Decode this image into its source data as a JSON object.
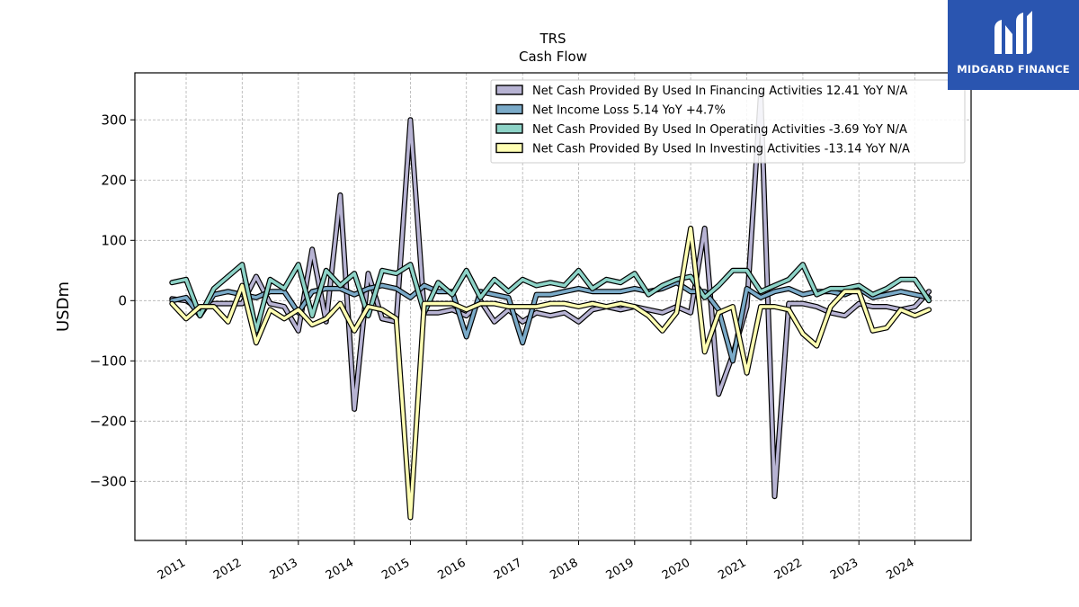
{
  "brand": {
    "name": "MIDGARD FINANCE",
    "icon": "midgard-m-logo",
    "background": "#2a55b0"
  },
  "chart_data": {
    "type": "line",
    "title": "TRS",
    "subtitle": "Cash Flow",
    "ylabel": "USDm",
    "xlabel": "",
    "xlim": [
      "2010-02-01",
      "2025-01-01"
    ],
    "ylim": [
      -398,
      378
    ],
    "yticks": [
      -300,
      -200,
      -100,
      0,
      100,
      200,
      300
    ],
    "ytick_labels": [
      "−300",
      "−200",
      "−100",
      "0",
      "100",
      "200",
      "300"
    ],
    "xticks": [
      "2011-01-01",
      "2012-01-01",
      "2013-01-01",
      "2014-01-01",
      "2015-01-01",
      "2016-01-01",
      "2017-01-01",
      "2018-01-01",
      "2019-01-01",
      "2020-01-01",
      "2021-01-01",
      "2022-01-01",
      "2023-01-01",
      "2024-01-01"
    ],
    "xtick_labels": [
      "2011",
      "2012",
      "2013",
      "2014",
      "2015",
      "2016",
      "2017",
      "2018",
      "2019",
      "2020",
      "2021",
      "2022",
      "2023",
      "2024"
    ],
    "grid": true,
    "legend_position": "top-right",
    "x": [
      "2010-10-01",
      "2011-01-01",
      "2011-04-01",
      "2011-07-01",
      "2011-10-01",
      "2012-01-01",
      "2012-04-01",
      "2012-07-01",
      "2012-10-01",
      "2013-01-01",
      "2013-04-01",
      "2013-07-01",
      "2013-10-01",
      "2014-01-01",
      "2014-04-01",
      "2014-07-01",
      "2014-10-01",
      "2015-01-01",
      "2015-04-01",
      "2015-07-01",
      "2015-10-01",
      "2016-01-01",
      "2016-04-01",
      "2016-07-01",
      "2016-10-01",
      "2017-01-01",
      "2017-04-01",
      "2017-07-01",
      "2017-10-01",
      "2018-01-01",
      "2018-04-01",
      "2018-07-01",
      "2018-10-01",
      "2019-01-01",
      "2019-04-01",
      "2019-07-01",
      "2019-10-01",
      "2020-01-01",
      "2020-04-01",
      "2020-07-01",
      "2020-10-01",
      "2021-01-01",
      "2021-04-01",
      "2021-07-01",
      "2021-10-01",
      "2022-01-01",
      "2022-04-01",
      "2022-07-01",
      "2022-10-01",
      "2023-01-01",
      "2023-04-01",
      "2023-07-01",
      "2023-10-01",
      "2024-01-01",
      "2024-04-01"
    ],
    "series": [
      {
        "name": "Net Cash Provided By Used In Financing Activities  12.41 YoY N/A",
        "color": "#b7b3d3",
        "values": [
          3,
          0,
          -15,
          -5,
          -5,
          -5,
          40,
          -5,
          -10,
          -50,
          85,
          -35,
          175,
          -180,
          45,
          -30,
          -35,
          300,
          -20,
          -20,
          -15,
          -25,
          0,
          -35,
          -15,
          -35,
          -20,
          -25,
          -20,
          -35,
          -15,
          -10,
          -15,
          -10,
          -15,
          -20,
          -10,
          -20,
          120,
          -155,
          -90,
          -10,
          345,
          -325,
          -5,
          -5,
          -10,
          -20,
          -25,
          -5,
          -10,
          -10,
          -15,
          -10,
          15
        ]
      },
      {
        "name": "Net Income Loss  5.14 YoY +4.7%",
        "color": "#7aaac8",
        "values": [
          0,
          5,
          -25,
          10,
          15,
          10,
          5,
          15,
          15,
          -20,
          15,
          20,
          20,
          10,
          20,
          25,
          20,
          5,
          25,
          15,
          15,
          -60,
          15,
          10,
          5,
          -70,
          10,
          10,
          15,
          20,
          15,
          15,
          15,
          20,
          15,
          20,
          30,
          15,
          15,
          -15,
          -100,
          20,
          5,
          15,
          20,
          10,
          15,
          15,
          10,
          20,
          5,
          10,
          15,
          10,
          5
        ]
      },
      {
        "name": "Net Cash Provided By Used In Operating Activities  -3.69 YoY N/A",
        "color": "#8dd3c7",
        "values": [
          30,
          35,
          -25,
          20,
          40,
          60,
          -50,
          35,
          20,
          60,
          -25,
          50,
          25,
          45,
          -25,
          50,
          45,
          60,
          -20,
          30,
          10,
          50,
          5,
          35,
          15,
          35,
          25,
          30,
          25,
          50,
          20,
          35,
          30,
          45,
          10,
          25,
          35,
          40,
          5,
          25,
          50,
          50,
          15,
          25,
          35,
          60,
          10,
          20,
          20,
          25,
          10,
          20,
          35,
          35,
          0
        ]
      },
      {
        "name": "Net Cash Provided By Used In Investing Activities  -13.14 YoY N/A",
        "color": "#ffffb3",
        "values": [
          -5,
          -30,
          -10,
          -10,
          -35,
          25,
          -70,
          -15,
          -30,
          -15,
          -40,
          -30,
          -5,
          -50,
          -10,
          -15,
          -30,
          -360,
          -5,
          -5,
          -5,
          -15,
          -5,
          -5,
          -10,
          -10,
          -10,
          -5,
          -5,
          -10,
          -5,
          -10,
          -5,
          -10,
          -25,
          -50,
          -20,
          120,
          -85,
          -20,
          -10,
          -120,
          -10,
          -10,
          -15,
          -55,
          -75,
          -10,
          15,
          15,
          -50,
          -45,
          -15,
          -25,
          -15
        ]
      }
    ]
  }
}
